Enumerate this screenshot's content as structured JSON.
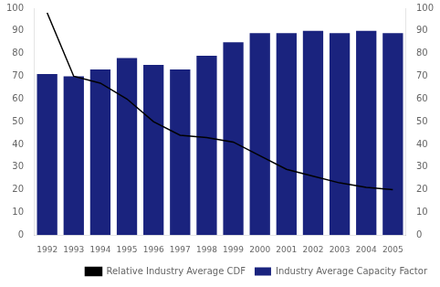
{
  "chart_data": {
    "type": "bar",
    "categories": [
      "1992",
      "1993",
      "1994",
      "1995",
      "1996",
      "1997",
      "1998",
      "1999",
      "2000",
      "2001",
      "2002",
      "2003",
      "2004",
      "2005"
    ],
    "series": [
      {
        "name": "Industry Average Capacity Factor",
        "type": "bar",
        "color": "#1a237e",
        "values": [
          71,
          70,
          73,
          78,
          75,
          73,
          79,
          85,
          89,
          89,
          90,
          89,
          90,
          89
        ]
      },
      {
        "name": "Relative Industry Average CDF",
        "type": "line",
        "color": "#000000",
        "axis": "y2",
        "values": [
          98,
          70,
          67,
          60,
          50,
          44,
          43,
          41,
          35,
          29,
          26,
          23,
          21,
          20
        ]
      }
    ],
    "ylim": [
      0,
      100
    ],
    "yticks": [
      0,
      10,
      20,
      30,
      40,
      50,
      60,
      70,
      80,
      90,
      100
    ],
    "y2lim": [
      0,
      100
    ],
    "y2ticks": [
      0,
      10,
      20,
      30,
      40,
      50,
      60,
      70,
      80,
      90,
      100
    ],
    "grid": false,
    "legend": "lower right"
  }
}
